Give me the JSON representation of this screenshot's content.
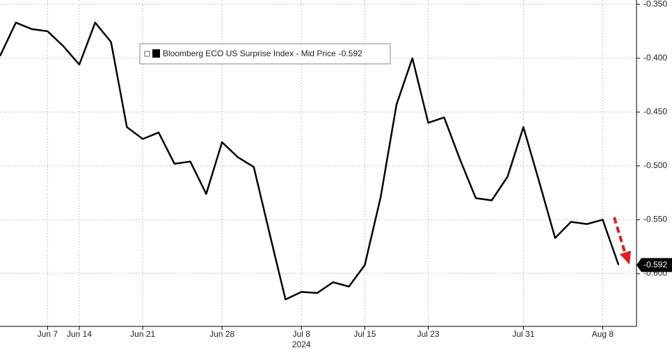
{
  "chart_data": {
    "type": "line",
    "xlabel": "2024",
    "categories": [
      null,
      null,
      null,
      "Jun 7",
      null,
      "Jun 14",
      null,
      null,
      null,
      "Jun 21",
      null,
      null,
      null,
      null,
      "Jun 28",
      null,
      null,
      null,
      null,
      "Jul 8",
      null,
      null,
      null,
      "Jul 15",
      null,
      null,
      null,
      "Jul 23",
      null,
      null,
      null,
      null,
      null,
      "Jul 31",
      null,
      null,
      null,
      null,
      "Aug 8",
      null
    ],
    "series": [
      {
        "name": "Bloomberg ECO US Surprise Index - Mid Price",
        "color": "#000000",
        "values": [
          -0.398,
          -0.367,
          -0.373,
          -0.375,
          -0.389,
          -0.406,
          -0.367,
          -0.385,
          -0.464,
          -0.475,
          -0.469,
          -0.498,
          -0.496,
          -0.526,
          -0.478,
          -0.492,
          -0.501,
          -0.563,
          -0.624,
          -0.617,
          -0.618,
          -0.608,
          -0.612,
          -0.592,
          -0.529,
          -0.443,
          -0.4,
          -0.46,
          -0.455,
          -0.494,
          -0.53,
          -0.532,
          -0.51,
          -0.464,
          -0.515,
          -0.567,
          -0.552,
          -0.554,
          -0.55,
          -0.592
        ]
      }
    ],
    "ylim": [
      -0.649,
      -0.346
    ],
    "yticks": [
      {
        "value": -0.35,
        "label": "-0.350"
      },
      {
        "value": -0.4,
        "label": "-0.400"
      },
      {
        "value": -0.45,
        "label": "-0.450"
      },
      {
        "value": -0.5,
        "label": "-0.500"
      },
      {
        "value": -0.55,
        "label": "-0.550"
      },
      {
        "value": -0.6,
        "label": "-0.600"
      }
    ],
    "grid": true
  }
}
